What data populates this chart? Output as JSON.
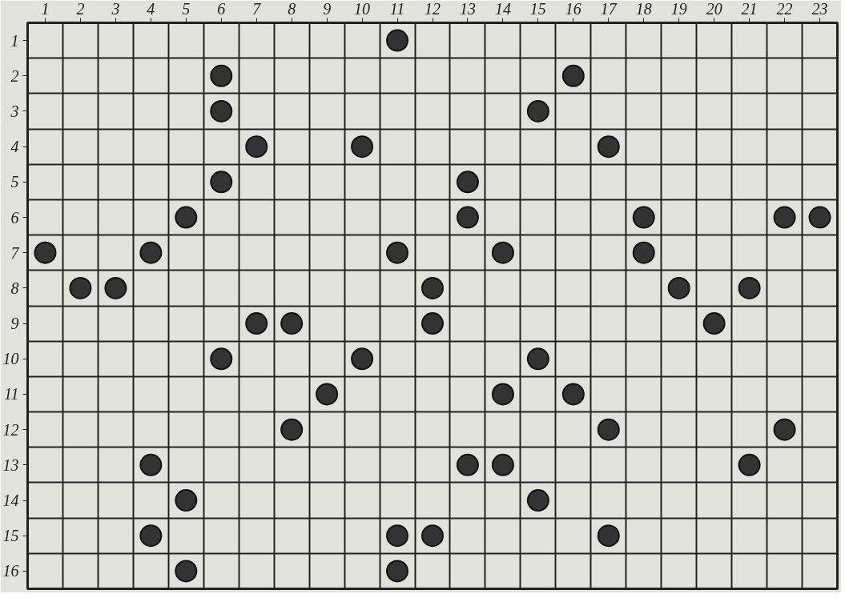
{
  "chart_data": {
    "type": "scatter",
    "marker": "circle",
    "grid": true,
    "xlim": [
      0.5,
      23.5
    ],
    "ylim": [
      16.5,
      0.5
    ],
    "xticks": [
      1,
      2,
      3,
      4,
      5,
      6,
      7,
      8,
      9,
      10,
      11,
      12,
      13,
      14,
      15,
      16,
      17,
      18,
      19,
      20,
      21,
      22,
      23
    ],
    "yticks": [
      1,
      2,
      3,
      4,
      5,
      6,
      7,
      8,
      9,
      10,
      11,
      12,
      13,
      14,
      15,
      16
    ],
    "series": [
      {
        "color": "#333333",
        "x": [
          11,
          6,
          16,
          6,
          15,
          7,
          10,
          17,
          6,
          13,
          5,
          13,
          18,
          22,
          23,
          1,
          4,
          11,
          14,
          18,
          2,
          3,
          12,
          19,
          21,
          7,
          8,
          12,
          20,
          6,
          10,
          15,
          9,
          14,
          16,
          8,
          17,
          22,
          4,
          13,
          14,
          21,
          5,
          15,
          4,
          11,
          12,
          17,
          5,
          11
        ],
        "values": [
          1,
          2,
          2,
          3,
          3,
          4,
          4,
          4,
          5,
          5,
          6,
          6,
          6,
          6,
          6,
          7,
          7,
          7,
          7,
          7,
          8,
          8,
          8,
          8,
          8,
          9,
          9,
          9,
          9,
          10,
          10,
          10,
          11,
          11,
          11,
          12,
          12,
          12,
          13,
          13,
          13,
          13,
          14,
          14,
          15,
          15,
          15,
          15,
          16,
          16
        ]
      }
    ]
  }
}
